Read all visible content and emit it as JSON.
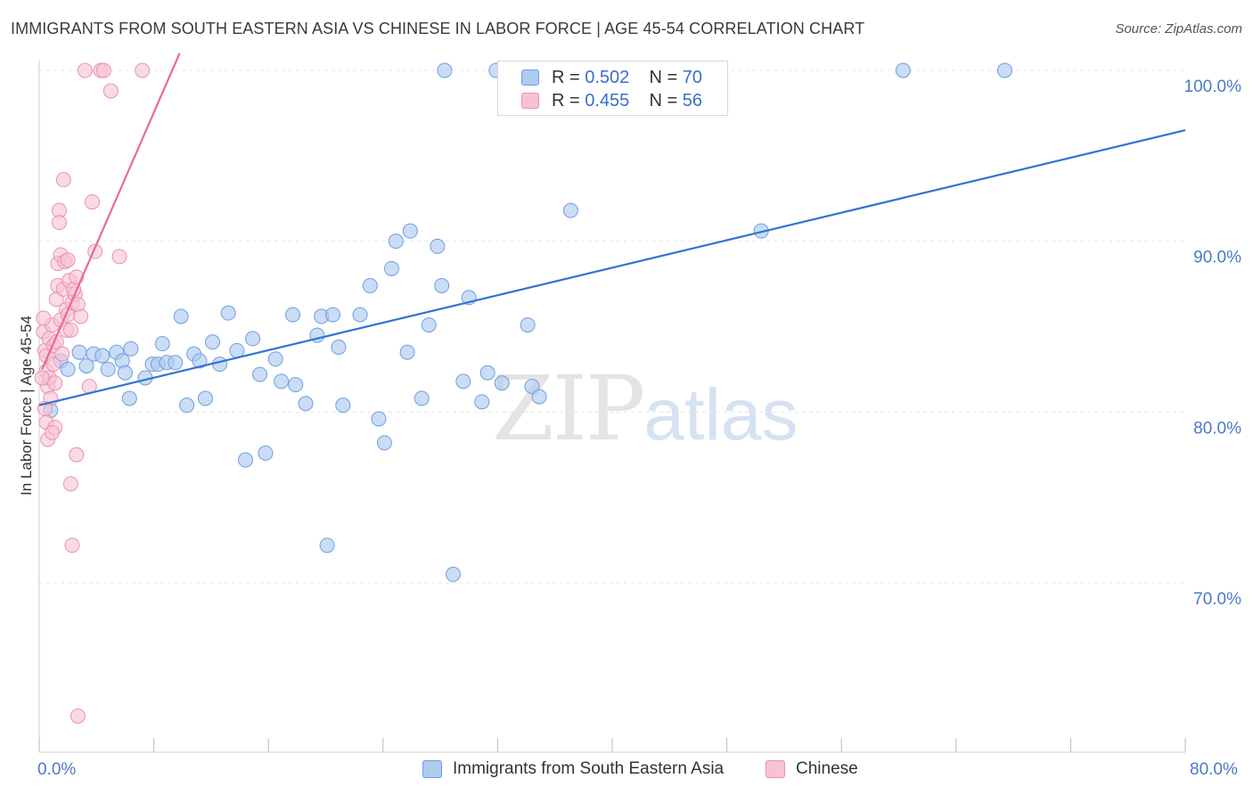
{
  "header": {
    "title": "IMMIGRANTS FROM SOUTH EASTERN ASIA VS CHINESE IN LABOR FORCE | AGE 45-54 CORRELATION CHART",
    "source": "Source: ZipAtlas.com"
  },
  "watermark": {
    "zip": "ZIP",
    "atlas": "atlas"
  },
  "legend": {
    "series1": {
      "r_label": "R = ",
      "r_value": "0.502",
      "n_label": "N = ",
      "n_value": "70",
      "name": "Immigrants from South Eastern Asia"
    },
    "series2": {
      "r_label": "R = ",
      "r_value": "0.455",
      "n_label": "N = ",
      "n_value": "56",
      "name": "Chinese"
    }
  },
  "colors": {
    "blue_fill": "#aecbf0",
    "blue_stroke": "#6f9ee0",
    "blue_line": "#2f75d0",
    "pink_fill": "#f7c2d3",
    "pink_stroke": "#ea92ae",
    "pink_line": "#e8699a",
    "axis_label": "#4a7ac8",
    "grid": "#e5e5e5"
  },
  "chart_data": {
    "type": "scatter",
    "title": "IMMIGRANTS FROM SOUTH EASTERN ASIA VS CHINESE IN LABOR FORCE | AGE 45-54 CORRELATION CHART",
    "xlabel": "",
    "ylabel": "In Labor Force | Age 45-54",
    "xlim": [
      0,
      80
    ],
    "ylim": [
      60.5,
      102
    ],
    "x_tick_labels": [
      "0.0%",
      "80.0%"
    ],
    "y_ticks": [
      70,
      80,
      90,
      100
    ],
    "y_tick_labels": [
      "70.0%",
      "80.0%",
      "90.0%",
      "100.0%"
    ],
    "grid": true,
    "series": [
      {
        "name": "Immigrants from South Eastern Asia",
        "color": "#6f9ee0",
        "R": 0.502,
        "N": 70,
        "trend": {
          "x": [
            0,
            80
          ],
          "y": [
            80.4,
            96.5
          ]
        },
        "points": [
          [
            0.8,
            80.1
          ],
          [
            1.5,
            83.0
          ],
          [
            2.0,
            82.5
          ],
          [
            2.8,
            83.5
          ],
          [
            3.3,
            82.7
          ],
          [
            3.8,
            83.4
          ],
          [
            4.4,
            83.3
          ],
          [
            4.8,
            82.5
          ],
          [
            5.4,
            83.5
          ],
          [
            5.8,
            83.0
          ],
          [
            6.4,
            83.7
          ],
          [
            6.0,
            82.3
          ],
          [
            6.3,
            80.8
          ],
          [
            7.4,
            82.0
          ],
          [
            7.9,
            82.8
          ],
          [
            8.3,
            82.8
          ],
          [
            8.6,
            84.0
          ],
          [
            8.9,
            82.9
          ],
          [
            9.5,
            82.9
          ],
          [
            9.9,
            85.6
          ],
          [
            10.3,
            80.4
          ],
          [
            10.8,
            83.4
          ],
          [
            11.2,
            83.0
          ],
          [
            11.6,
            80.8
          ],
          [
            12.1,
            84.1
          ],
          [
            12.6,
            82.8
          ],
          [
            13.2,
            85.8
          ],
          [
            13.8,
            83.6
          ],
          [
            14.4,
            77.2
          ],
          [
            14.9,
            84.3
          ],
          [
            15.4,
            82.2
          ],
          [
            15.8,
            77.6
          ],
          [
            16.5,
            83.1
          ],
          [
            16.9,
            81.8
          ],
          [
            17.7,
            85.7
          ],
          [
            17.9,
            81.6
          ],
          [
            18.6,
            80.5
          ],
          [
            19.4,
            84.5
          ],
          [
            19.7,
            85.6
          ],
          [
            20.5,
            85.7
          ],
          [
            20.1,
            72.2
          ],
          [
            20.9,
            83.8
          ],
          [
            21.2,
            80.4
          ],
          [
            22.4,
            85.7
          ],
          [
            23.1,
            87.4
          ],
          [
            23.7,
            79.6
          ],
          [
            24.1,
            78.2
          ],
          [
            24.6,
            88.4
          ],
          [
            24.9,
            90.0
          ],
          [
            25.7,
            83.5
          ],
          [
            25.9,
            90.6
          ],
          [
            26.7,
            80.8
          ],
          [
            27.2,
            85.1
          ],
          [
            27.8,
            89.7
          ],
          [
            28.1,
            87.4
          ],
          [
            28.3,
            100.0
          ],
          [
            28.9,
            70.5
          ],
          [
            29.6,
            81.8
          ],
          [
            30.0,
            86.7
          ],
          [
            30.9,
            80.6
          ],
          [
            31.3,
            82.3
          ],
          [
            31.9,
            100.0
          ],
          [
            32.3,
            81.7
          ],
          [
            34.1,
            85.1
          ],
          [
            34.4,
            81.5
          ],
          [
            34.9,
            80.9
          ],
          [
            37.1,
            91.8
          ],
          [
            50.4,
            90.6
          ],
          [
            60.3,
            100.0
          ],
          [
            67.4,
            100.0
          ]
        ]
      },
      {
        "name": "Chinese",
        "color": "#ea92ae",
        "R": 0.455,
        "N": 56,
        "trend": {
          "x": [
            0.2,
            9.8
          ],
          "y": [
            82.5,
            101.0
          ]
        },
        "points": [
          [
            0.3,
            84.7
          ],
          [
            0.4,
            83.6
          ],
          [
            0.5,
            83.3
          ],
          [
            0.5,
            82.4
          ],
          [
            0.6,
            81.5
          ],
          [
            0.5,
            79.4
          ],
          [
            0.6,
            78.4
          ],
          [
            0.7,
            84.3
          ],
          [
            0.7,
            82.0
          ],
          [
            0.8,
            80.8
          ],
          [
            0.9,
            85.1
          ],
          [
            1.0,
            83.9
          ],
          [
            1.0,
            82.8
          ],
          [
            1.1,
            81.7
          ],
          [
            1.1,
            79.1
          ],
          [
            1.2,
            86.6
          ],
          [
            1.2,
            84.1
          ],
          [
            1.3,
            88.7
          ],
          [
            1.3,
            87.4
          ],
          [
            1.4,
            91.8
          ],
          [
            1.4,
            91.1
          ],
          [
            1.5,
            89.2
          ],
          [
            1.5,
            85.4
          ],
          [
            1.6,
            83.4
          ],
          [
            1.7,
            93.6
          ],
          [
            1.7,
            87.2
          ],
          [
            1.8,
            88.8
          ],
          [
            1.9,
            86.0
          ],
          [
            1.9,
            84.8
          ],
          [
            2.0,
            88.9
          ],
          [
            2.0,
            85.7
          ],
          [
            2.1,
            87.7
          ],
          [
            2.2,
            84.8
          ],
          [
            2.2,
            75.8
          ],
          [
            2.3,
            86.4
          ],
          [
            2.5,
            86.9
          ],
          [
            2.4,
            87.2
          ],
          [
            2.3,
            72.2
          ],
          [
            2.6,
            87.9
          ],
          [
            2.6,
            77.5
          ],
          [
            2.7,
            86.3
          ],
          [
            2.7,
            62.2
          ],
          [
            2.9,
            85.6
          ],
          [
            3.2,
            100.0
          ],
          [
            3.5,
            81.5
          ],
          [
            3.7,
            92.3
          ],
          [
            3.9,
            89.4
          ],
          [
            4.3,
            100.0
          ],
          [
            4.5,
            100.0
          ],
          [
            5.0,
            98.8
          ],
          [
            5.6,
            89.1
          ],
          [
            7.2,
            100.0
          ],
          [
            0.2,
            82.0
          ],
          [
            0.3,
            85.5
          ],
          [
            0.9,
            78.8
          ],
          [
            0.4,
            80.2
          ]
        ]
      }
    ]
  }
}
